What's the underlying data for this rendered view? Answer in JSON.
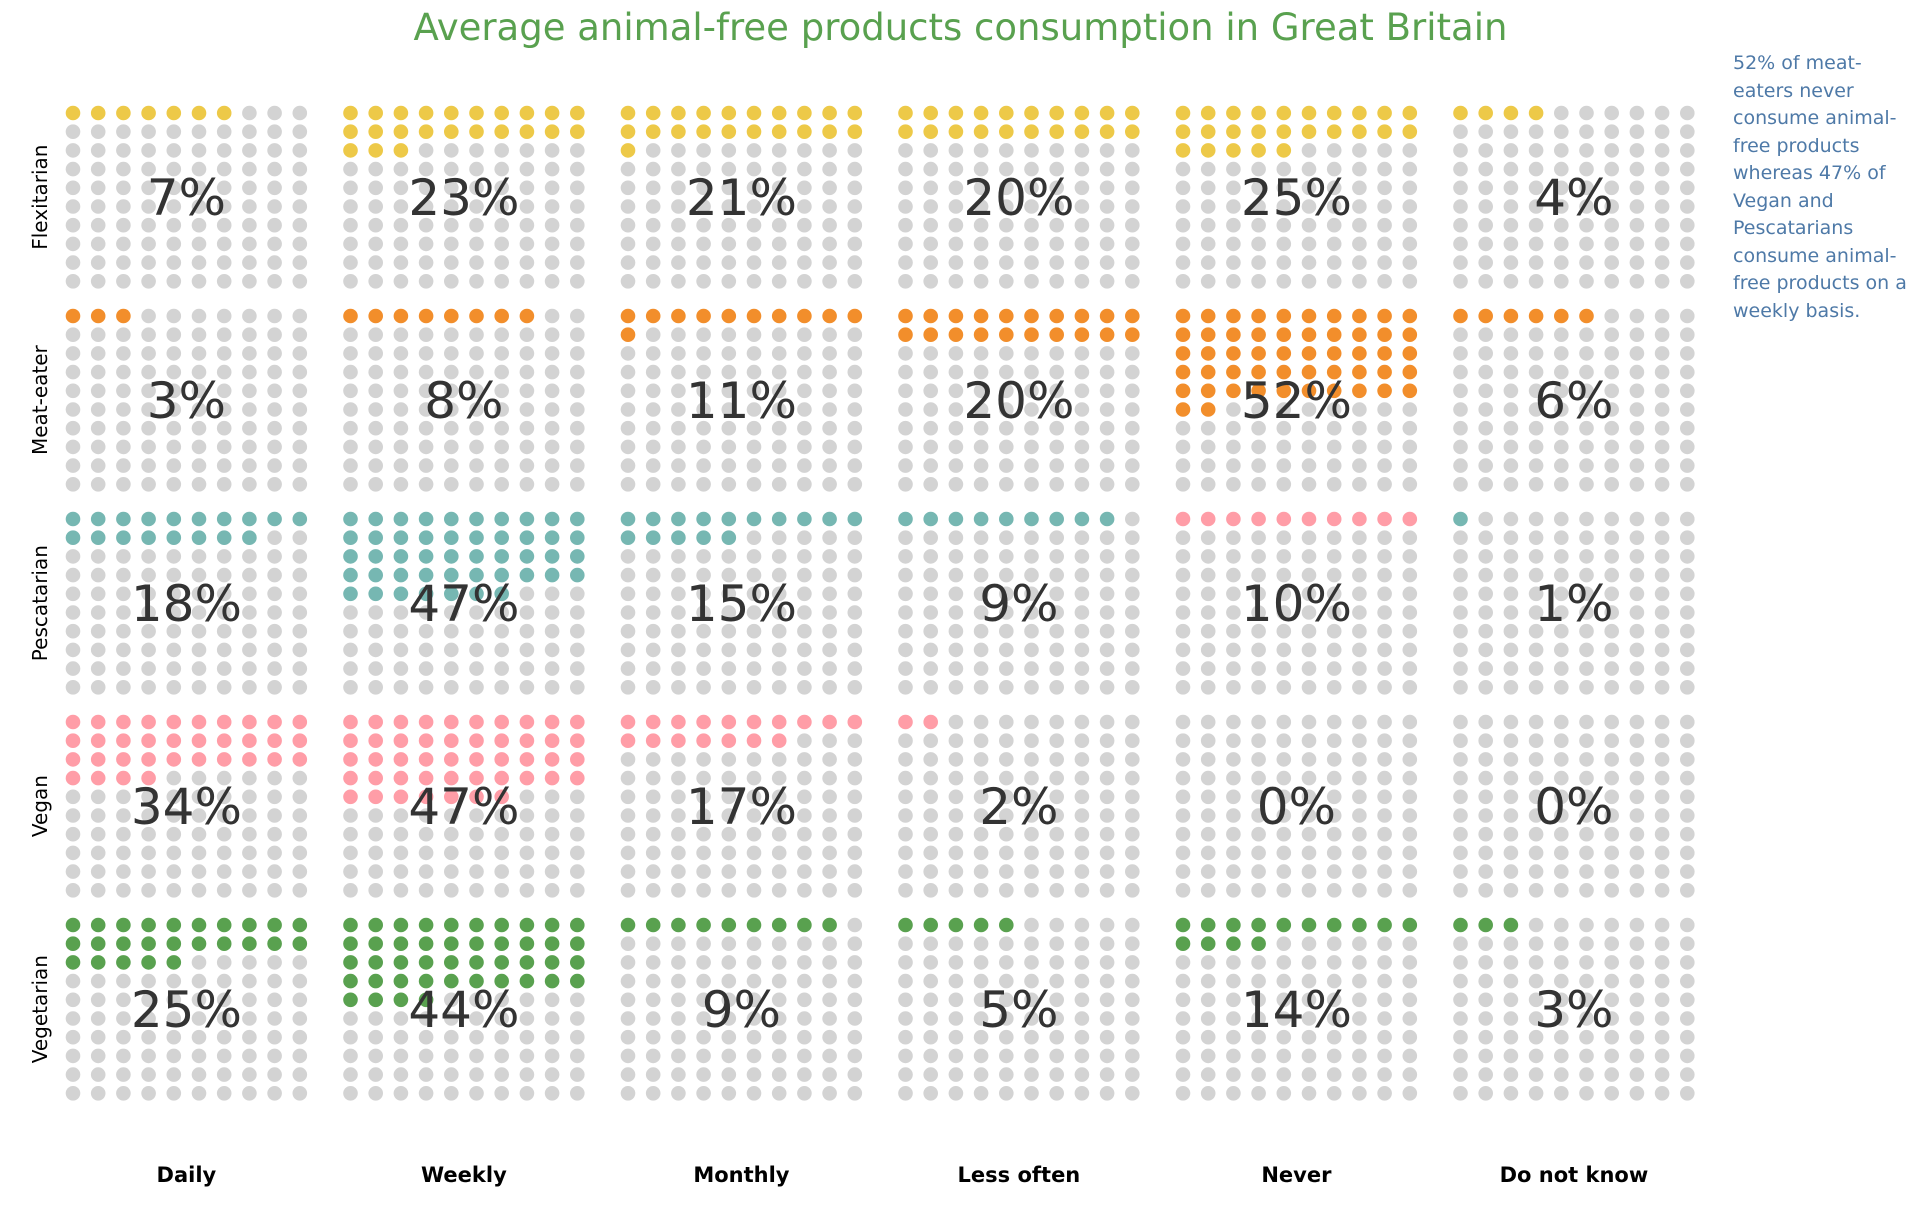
{
  "title": "Average animal-free products consumption in Great Britain",
  "annotation": "52% of meat-eaters never consume animal-free products whereas 47% of Vegan and Pescatarians consume animal-free products on a weekly basis.",
  "colors": {
    "empty_dot": "#d3d3d3",
    "label_text": "#333333",
    "row_label_text": "#000000",
    "title": "#59a14f",
    "annotation": "#4e79a7"
  },
  "chart_data": {
    "type": "waffle",
    "grid": "10x10",
    "columns": [
      "Daily",
      "Weekly",
      "Monthly",
      "Less often",
      "Never",
      "Do not know"
    ],
    "rows": [
      {
        "name": "Flexitarian",
        "color": "#edc948",
        "values": [
          7,
          23,
          21,
          20,
          25,
          4
        ]
      },
      {
        "name": "Meat-eater",
        "color": "#f28e2b",
        "values": [
          3,
          8,
          11,
          20,
          52,
          6
        ]
      },
      {
        "name": "Pescatarian",
        "color": "#76b7b2",
        "values": [
          18,
          47,
          15,
          9,
          10,
          1
        ],
        "cell_colors": {
          "4": "#ff9da7"
        }
      },
      {
        "name": "Vegan",
        "color": "#ff9da7",
        "values": [
          34,
          47,
          17,
          2,
          0,
          0
        ]
      },
      {
        "name": "Vegetarian",
        "color": "#59a14f",
        "values": [
          25,
          44,
          9,
          5,
          14,
          3
        ]
      }
    ]
  }
}
